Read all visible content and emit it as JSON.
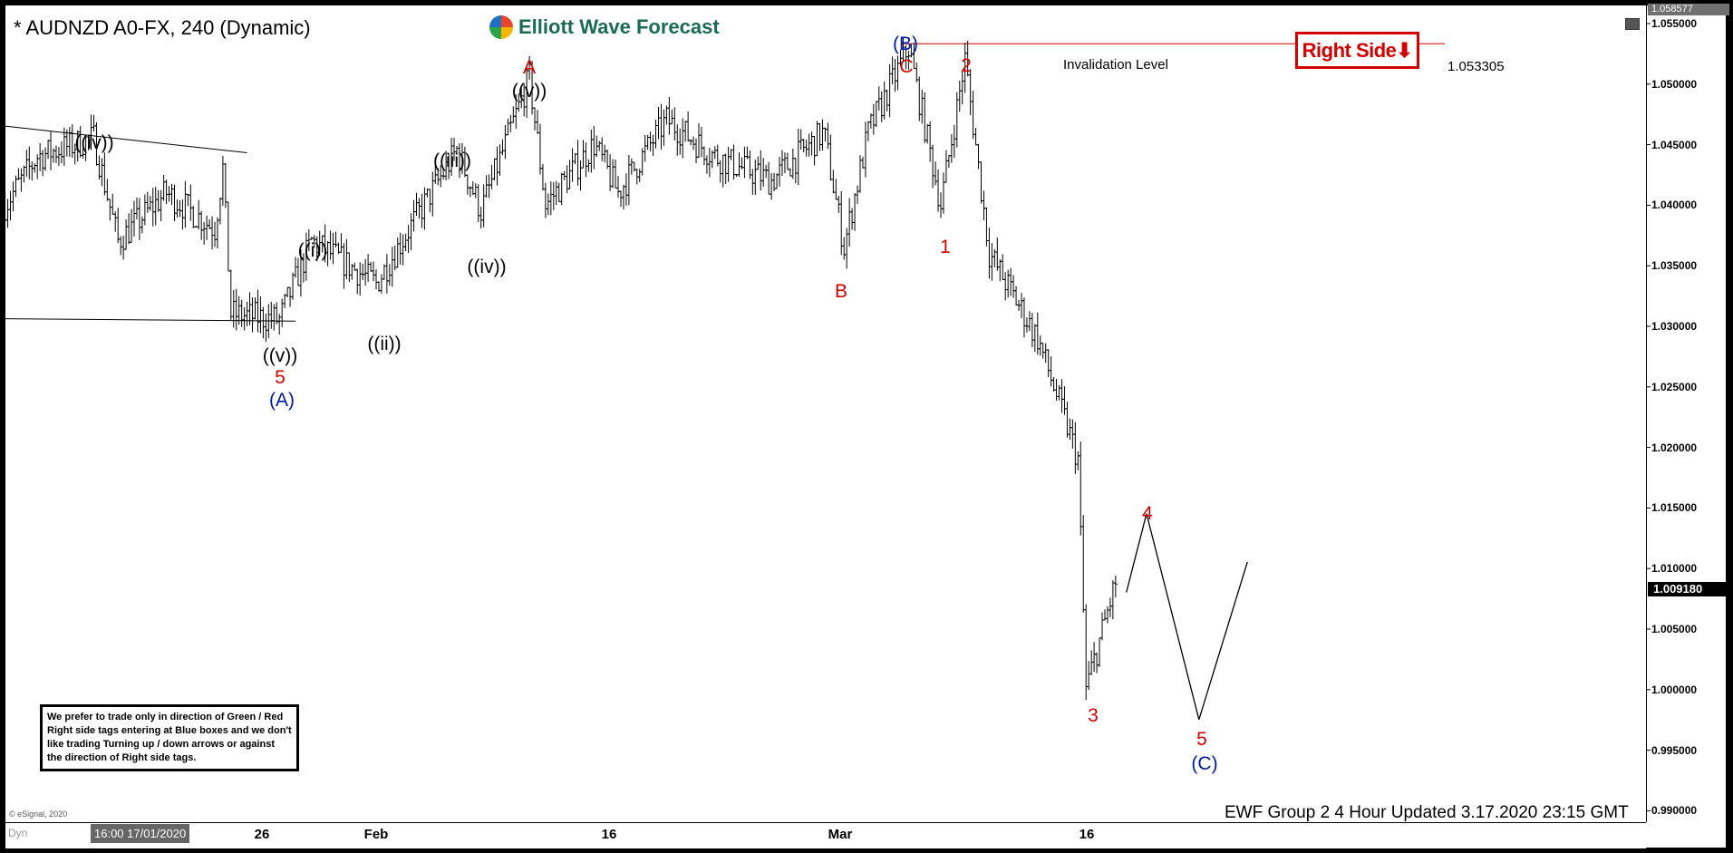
{
  "header": {
    "title": "* AUDNZD A0-FX, 240 (Dynamic)",
    "logo": "Elliott Wave Forecast",
    "right_side_tag": "Right Side⬇",
    "right_side_color": "#d40000"
  },
  "invalidation": {
    "label": "Invalidation Level",
    "value": "1.053305",
    "price": 1.053305
  },
  "disclaimer": "We prefer to trade only in direction of Green / Red Right side tags entering at Blue boxes and we don't like trading Turning up / down arrows or against the direction of Right side tags.",
  "copyright": "© eSignal, 2020",
  "footer": "EWF Group 2 4 Hour Updated 3.17.2020 23:15 GMT",
  "status": {
    "dyn": "Dyn",
    "cursor_time": "16:00 17/01/2020"
  },
  "chart_data": {
    "type": "ohlc-bar",
    "symbol": "AUDNZD",
    "timeframe": "240",
    "ylim": [
      0.9879,
      1.0586
    ],
    "y_ticks": [
      "1.055000",
      "1.050000",
      "1.045000",
      "1.040000",
      "1.035000",
      "1.030000",
      "1.025000",
      "1.020000",
      "1.015000",
      "1.010000",
      "1.005000",
      "1.000000",
      "0.995000",
      "0.990000"
    ],
    "top_price": "1.058577",
    "last_price": "1.009180",
    "x_ticks": [
      "26",
      "Feb",
      "16",
      "Mar",
      "16"
    ],
    "price_path": [
      [
        "2020-01-09",
        1.04
      ],
      [
        "2020-01-11",
        1.044
      ],
      [
        "2020-01-14T12:00",
        1.0455
      ],
      [
        "2020-01-16",
        1.037
      ],
      [
        "2020-01-19",
        1.041
      ],
      [
        "2020-01-22",
        1.038
      ],
      [
        "2020-01-22T12:00",
        1.043
      ],
      [
        "2020-01-23",
        1.031
      ],
      [
        "2020-01-26",
        1.0305
      ],
      [
        "2020-01-28",
        1.037
      ],
      [
        "2020-02-01",
        1.0335
      ],
      [
        "2020-02-06",
        1.0445
      ],
      [
        "2020-02-07T12:00",
        1.0395
      ],
      [
        "2020-02-10T12:00",
        1.0505
      ],
      [
        "2020-02-11T12:00",
        1.04
      ],
      [
        "2020-02-14T12:00",
        1.045
      ],
      [
        "2020-02-16",
        1.041
      ],
      [
        "2020-02-19",
        1.047
      ],
      [
        "2020-02-22",
        1.044
      ],
      [
        "2020-02-25T12:00",
        1.042
      ],
      [
        "2020-02-28T18:00",
        1.046
      ],
      [
        "2020-03-01",
        1.0365
      ],
      [
        "2020-03-02T12:00",
        1.046
      ],
      [
        "2020-03-05",
        1.053
      ],
      [
        "2020-03-07",
        1.04
      ],
      [
        "2020-03-08T12:00",
        1.052
      ],
      [
        "2020-03-10",
        1.036
      ],
      [
        "2020-03-13",
        1.029
      ],
      [
        "2020-03-15T12:00",
        1.019
      ],
      [
        "2020-03-16",
        1.0
      ],
      [
        "2020-03-17T21:00",
        1.009
      ]
    ],
    "projection": [
      [
        "2020-03-18T12:00",
        1.008
      ],
      [
        "2020-03-19T18:00",
        1.0145
      ],
      [
        "2020-03-23",
        0.9975
      ],
      [
        "2020-03-26",
        1.0105
      ]
    ],
    "trendlines": [
      [
        [
          "2020-01-09",
          1.0465
        ],
        [
          "2020-01-24",
          1.0443
        ]
      ],
      [
        [
          "2020-01-09",
          1.0306
        ],
        [
          "2020-01-27",
          1.0304
        ]
      ]
    ],
    "wave_labels": [
      {
        "text": "((iv))",
        "color": "black"
      },
      {
        "text": "((v))",
        "color": "black"
      },
      {
        "text": "5",
        "color": "red"
      },
      {
        "text": "(A)",
        "color": "blue"
      },
      {
        "text": "((i))",
        "color": "black"
      },
      {
        "text": "((ii))",
        "color": "black"
      },
      {
        "text": "((iii))",
        "color": "black"
      },
      {
        "text": "((iv))",
        "color": "black"
      },
      {
        "text": "A",
        "color": "red"
      },
      {
        "text": "((v))",
        "color": "black"
      },
      {
        "text": "B",
        "color": "red"
      },
      {
        "text": "(B)",
        "color": "blue"
      },
      {
        "text": "C",
        "color": "red"
      },
      {
        "text": "2",
        "color": "red"
      },
      {
        "text": "1",
        "color": "red"
      },
      {
        "text": "3",
        "color": "red"
      },
      {
        "text": "4",
        "color": "red"
      },
      {
        "text": "5",
        "color": "red"
      },
      {
        "text": "(C)",
        "color": "blue"
      }
    ]
  }
}
